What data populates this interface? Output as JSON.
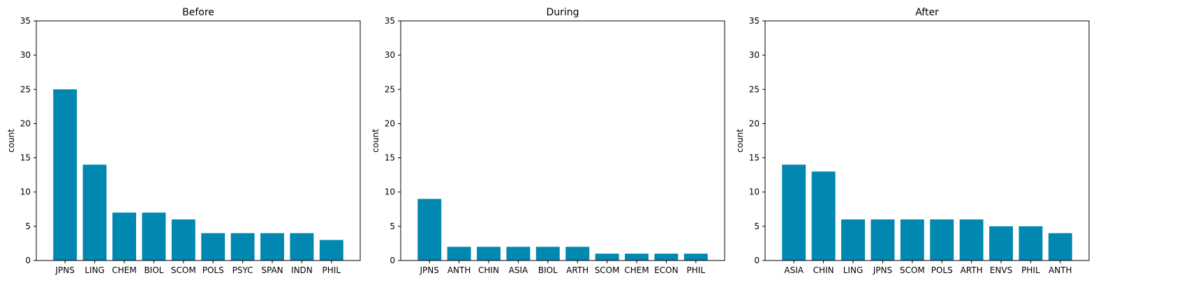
{
  "chart_data": [
    {
      "type": "bar",
      "title": "Before",
      "xlabel": "",
      "ylabel": "count",
      "ylim": [
        0,
        35
      ],
      "yticks": [
        0,
        5,
        10,
        15,
        20,
        25,
        30,
        35
      ],
      "categories": [
        "JPNS",
        "LING",
        "CHEM",
        "BIOL",
        "SCOM",
        "POLS",
        "PSYC",
        "SPAN",
        "INDN",
        "PHIL"
      ],
      "values": [
        25,
        14,
        7,
        7,
        6,
        4,
        4,
        4,
        4,
        3
      ],
      "bar_color": "#0088b0",
      "grid": false,
      "legend": "none"
    },
    {
      "type": "bar",
      "title": "During",
      "xlabel": "",
      "ylabel": "count",
      "ylim": [
        0,
        35
      ],
      "yticks": [
        0,
        5,
        10,
        15,
        20,
        25,
        30,
        35
      ],
      "categories": [
        "JPNS",
        "ANTH",
        "CHIN",
        "ASIA",
        "BIOL",
        "ARTH",
        "SCOM",
        "CHEM",
        "ECON",
        "PHIL"
      ],
      "values": [
        9,
        2,
        2,
        2,
        2,
        2,
        1,
        1,
        1,
        1
      ],
      "bar_color": "#0088b0",
      "grid": false,
      "legend": "none"
    },
    {
      "type": "bar",
      "title": "After",
      "xlabel": "",
      "ylabel": "count",
      "ylim": [
        0,
        35
      ],
      "yticks": [
        0,
        5,
        10,
        15,
        20,
        25,
        30,
        35
      ],
      "categories": [
        "ASIA",
        "CHIN",
        "LING",
        "JPNS",
        "SCOM",
        "POLS",
        "ARTH",
        "ENVS",
        "PHIL",
        "ANTH"
      ],
      "values": [
        14,
        13,
        6,
        6,
        6,
        6,
        6,
        5,
        5,
        4
      ],
      "bar_color": "#0088b0",
      "grid": false,
      "legend": "none"
    }
  ]
}
